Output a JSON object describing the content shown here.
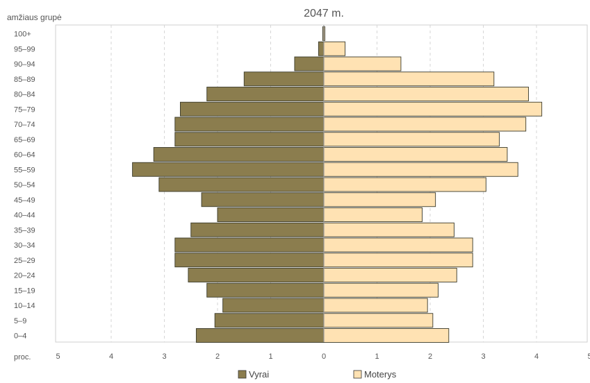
{
  "chart_data": {
    "type": "bar",
    "orientation": "horizontal",
    "layout": "population-pyramid",
    "title": "2047 m.",
    "ylabel": "amžiaus grupė",
    "xlabel": "proc.",
    "xlim": [
      -5,
      5
    ],
    "x_ticks": [
      "5",
      "4",
      "3",
      "2",
      "1",
      "0",
      "1",
      "2",
      "3",
      "4",
      "5"
    ],
    "grid": "vertical dashed",
    "legend_position": "bottom-center",
    "categories": [
      "100+",
      "95–99",
      "90–94",
      "85–89",
      "80–84",
      "75–79",
      "70–74",
      "65–69",
      "60–64",
      "55–59",
      "50–54",
      "45–49",
      "40–44",
      "35–39",
      "30–34",
      "25–29",
      "20–24",
      "15–19",
      "10–14",
      "5–9",
      "0–4"
    ],
    "series": [
      {
        "name": "Vyrai",
        "side": "left",
        "color": "#8b7d4e",
        "values": [
          0.02,
          0.1,
          0.55,
          1.5,
          2.2,
          2.7,
          2.8,
          2.8,
          3.2,
          3.6,
          3.1,
          2.3,
          2.0,
          2.5,
          2.8,
          2.8,
          2.55,
          2.2,
          1.9,
          2.05,
          2.4
        ]
      },
      {
        "name": "Moterys",
        "side": "right",
        "color": "#ffe2b3",
        "values": [
          0.02,
          0.4,
          1.45,
          3.2,
          3.85,
          4.1,
          3.8,
          3.3,
          3.45,
          3.65,
          3.05,
          2.1,
          1.85,
          2.45,
          2.8,
          2.8,
          2.5,
          2.15,
          1.95,
          2.05,
          2.35
        ]
      }
    ]
  }
}
